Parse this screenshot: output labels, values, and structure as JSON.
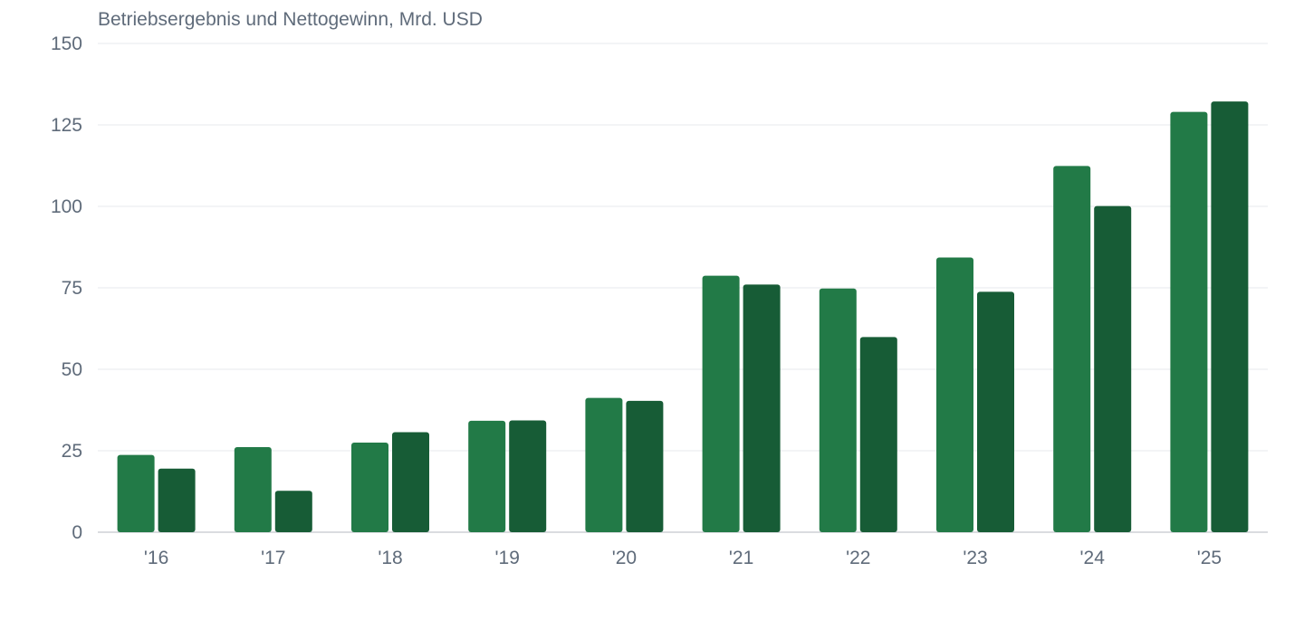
{
  "chart_data": {
    "type": "bar",
    "title": "Betriebsergebnis und Nettogewinn, Mrd. USD",
    "categories": [
      "'16",
      "'17",
      "'18",
      "'19",
      "'20",
      "'21",
      "'22",
      "'23",
      "'24",
      "'25"
    ],
    "series": [
      {
        "values": [
          23.7,
          26.1,
          27.5,
          34.2,
          41.2,
          78.7,
          74.8,
          84.3,
          112.4,
          129.0
        ],
        "color": "#227a47"
      },
      {
        "values": [
          19.5,
          12.7,
          30.7,
          34.3,
          40.3,
          76.0,
          59.9,
          73.8,
          100.1,
          132.2
        ],
        "color": "#175c36"
      }
    ],
    "ylim": [
      0,
      150
    ],
    "yticks": [
      0,
      25,
      50,
      75,
      100,
      125,
      150
    ],
    "grid": true,
    "legend": "none",
    "xlabel": "",
    "ylabel": ""
  }
}
